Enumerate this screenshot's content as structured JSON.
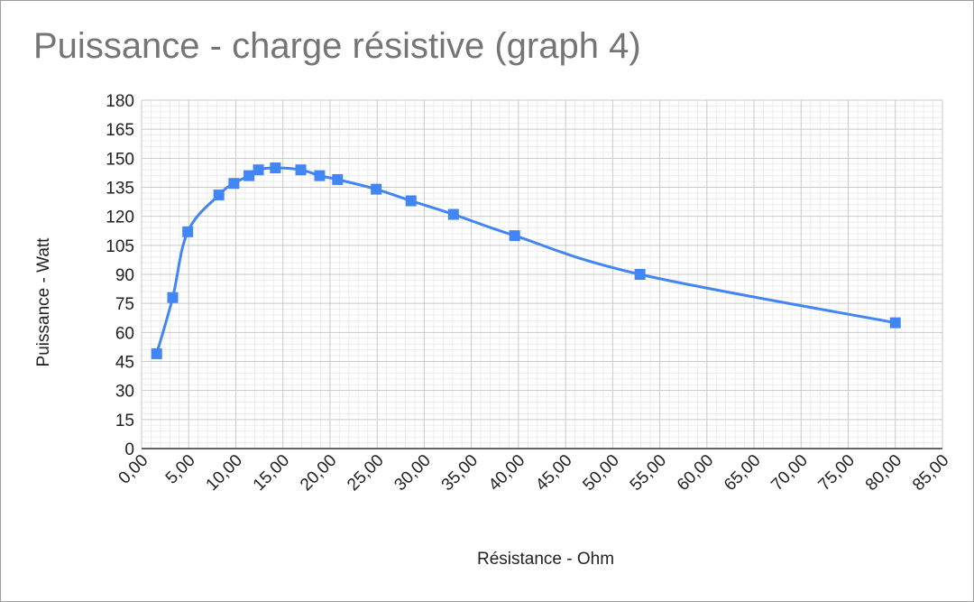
{
  "chart_data": {
    "type": "line",
    "title": "Puissance - charge résistive (graph 4)",
    "xlabel": "Résistance - Ohm",
    "ylabel": "Puissance - Watt",
    "xlim": [
      0,
      85
    ],
    "ylim": [
      0,
      180
    ],
    "x_ticks": [
      "0,00",
      "5,00",
      "10,00",
      "15,00",
      "20,00",
      "25,00",
      "30,00",
      "35,00",
      "40,00",
      "45,00",
      "50,00",
      "55,00",
      "60,00",
      "65,00",
      "70,00",
      "75,00",
      "80,00",
      "85,00"
    ],
    "y_ticks": [
      "0",
      "15",
      "30",
      "45",
      "60",
      "75",
      "90",
      "105",
      "120",
      "135",
      "150",
      "165",
      "180"
    ],
    "grid": true,
    "legend": "none",
    "marker": "square",
    "color": "#4285f4",
    "series": [
      {
        "x": [
          1.6,
          3.3,
          4.9,
          8.2,
          9.8,
          11.4,
          12.4,
          14.2,
          16.9,
          18.9,
          20.8,
          24.9,
          28.6,
          33.1,
          39.6,
          52.9,
          80.0
        ],
        "y": [
          49,
          78,
          112,
          131,
          137,
          141,
          144,
          145,
          144,
          141,
          139,
          134,
          128,
          121,
          110,
          90,
          65
        ]
      }
    ]
  }
}
